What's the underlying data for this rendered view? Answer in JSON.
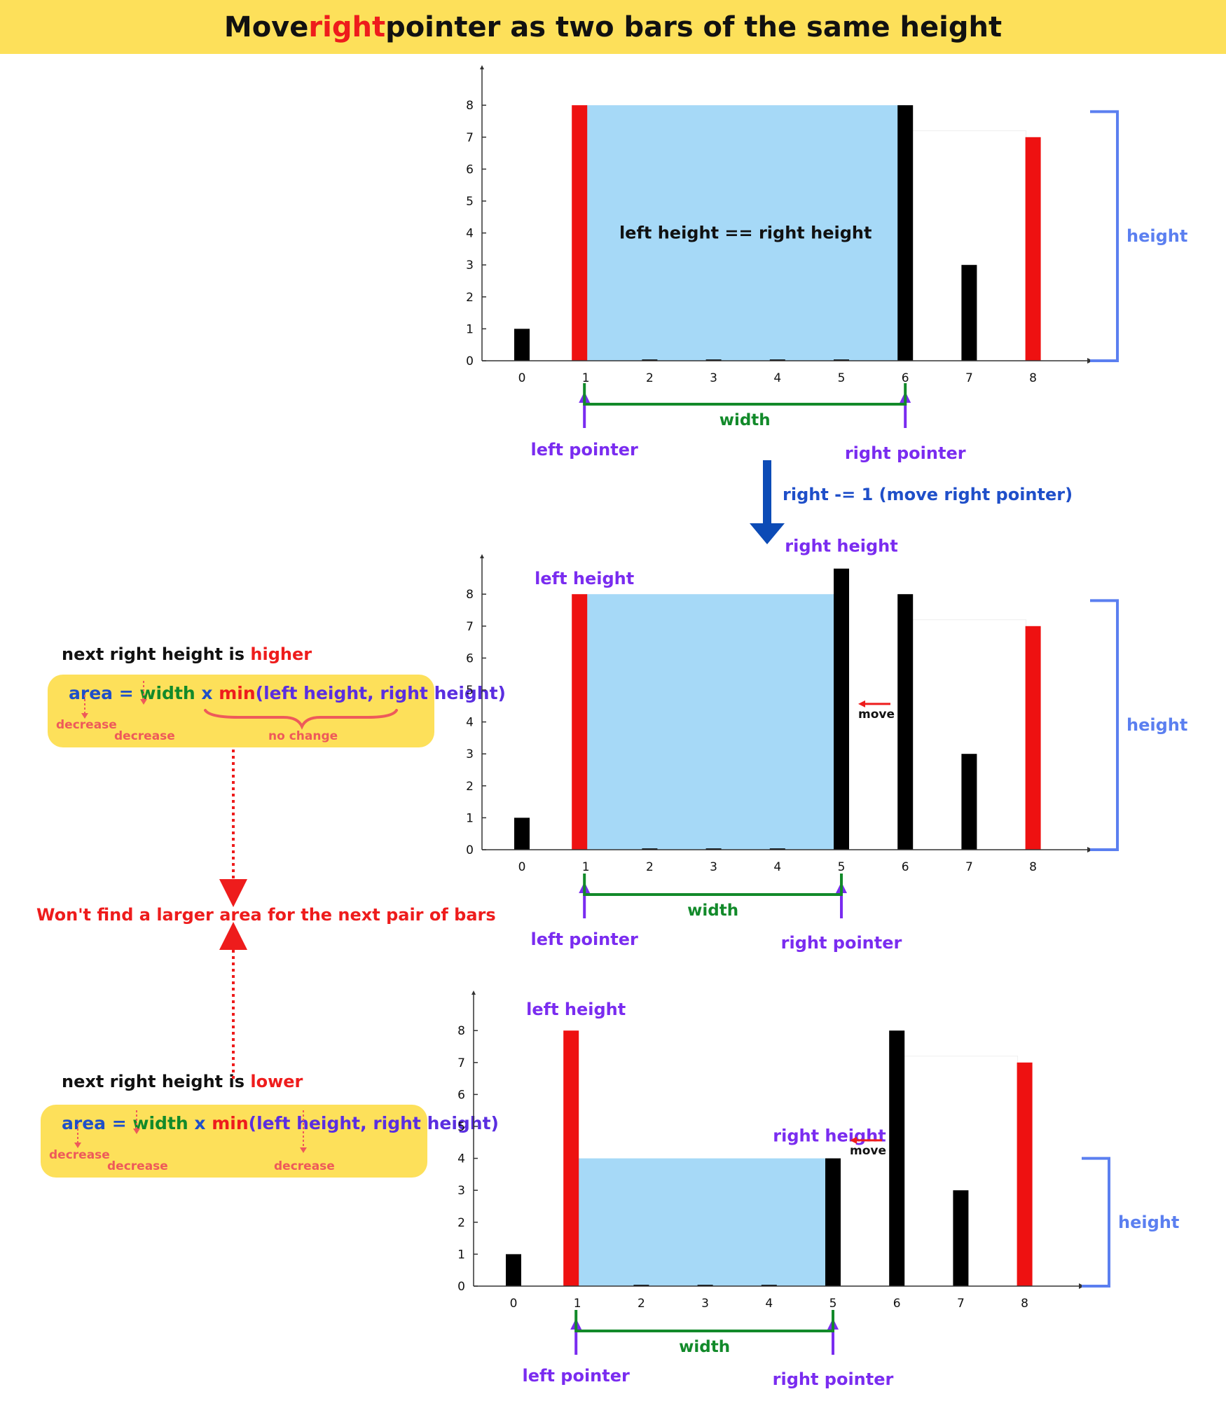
{
  "title": {
    "before": "Move ",
    "highlight": "right",
    "after": " pointer as two bars of the same height"
  },
  "colors": {
    "banner": "#fde05a",
    "red_bar": "#ee1111",
    "black_bar": "#000000",
    "water": "#a6d9f7",
    "bracket": "#5b7ff0",
    "pointer": "#7a2cf0",
    "width": "#128a2a",
    "move_arrow": "#0c4bb6",
    "conclusion": "#ee1c1c",
    "decrease": "#ee5a5a"
  },
  "panels": [
    {
      "heights": [
        1,
        8,
        0,
        0,
        0,
        0,
        8,
        3,
        7
      ],
      "x_ticks": [
        "0",
        "1",
        "2",
        "3",
        "4",
        "5",
        "6",
        "7",
        "8"
      ],
      "y_ticks": [
        "0",
        "1",
        "2",
        "3",
        "4",
        "5",
        "6",
        "7",
        "8"
      ],
      "left_index": 1,
      "right_index": 6,
      "water_level": 8,
      "center_label": "left height == right height",
      "left_pointer_label": "left pointer",
      "right_pointer_label": "right pointer",
      "width_label": "width",
      "height_label": "height"
    },
    {
      "heights": [
        1,
        8,
        0,
        0,
        0,
        8.8,
        8,
        3,
        7
      ],
      "x_ticks": [
        "0",
        "1",
        "2",
        "3",
        "4",
        "5",
        "6",
        "7",
        "8"
      ],
      "y_ticks": [
        "0",
        "1",
        "2",
        "3",
        "4",
        "5",
        "6",
        "7",
        "8"
      ],
      "left_index": 1,
      "right_index": 5,
      "water_level": 8,
      "left_height_label": "left height",
      "right_height_label": "right height",
      "move_label": "move",
      "left_pointer_label": "left pointer",
      "right_pointer_label": "right pointer",
      "width_label": "width",
      "height_label": "height"
    },
    {
      "heights": [
        1,
        8,
        0,
        0,
        0,
        4,
        8,
        3,
        7
      ],
      "x_ticks": [
        "0",
        "1",
        "2",
        "3",
        "4",
        "5",
        "6",
        "7",
        "8"
      ],
      "y_ticks": [
        "0",
        "1",
        "2",
        "3",
        "4",
        "5",
        "6",
        "7",
        "8"
      ],
      "left_index": 1,
      "right_index": 5,
      "water_level": 4,
      "left_height_label": "left height",
      "right_height_label": "right height",
      "move_label": "move",
      "left_pointer_label": "left pointer",
      "right_pointer_label": "right pointer",
      "width_label": "width",
      "height_label": "height"
    }
  ],
  "step_label": "right -= 1 (move right pointer)",
  "higher_case": {
    "heading_before": "next right height is ",
    "heading_highlight": "higher",
    "formula": {
      "area": "area",
      "eq": " = ",
      "width": "width",
      "x": " x ",
      "min": "min",
      "args": "(left height, right height)"
    },
    "notes": [
      "decrease",
      "decrease",
      "no change"
    ]
  },
  "conclusion": "Won't find a larger area for the next pair of bars",
  "lower_case": {
    "heading_before": "next right height is ",
    "heading_highlight": "lower",
    "formula": {
      "area": "area",
      "eq": " = ",
      "width": "width",
      "x": " x ",
      "min": "min",
      "args": "(left height, right height)"
    },
    "notes": [
      "decrease",
      "decrease",
      "decrease"
    ]
  }
}
